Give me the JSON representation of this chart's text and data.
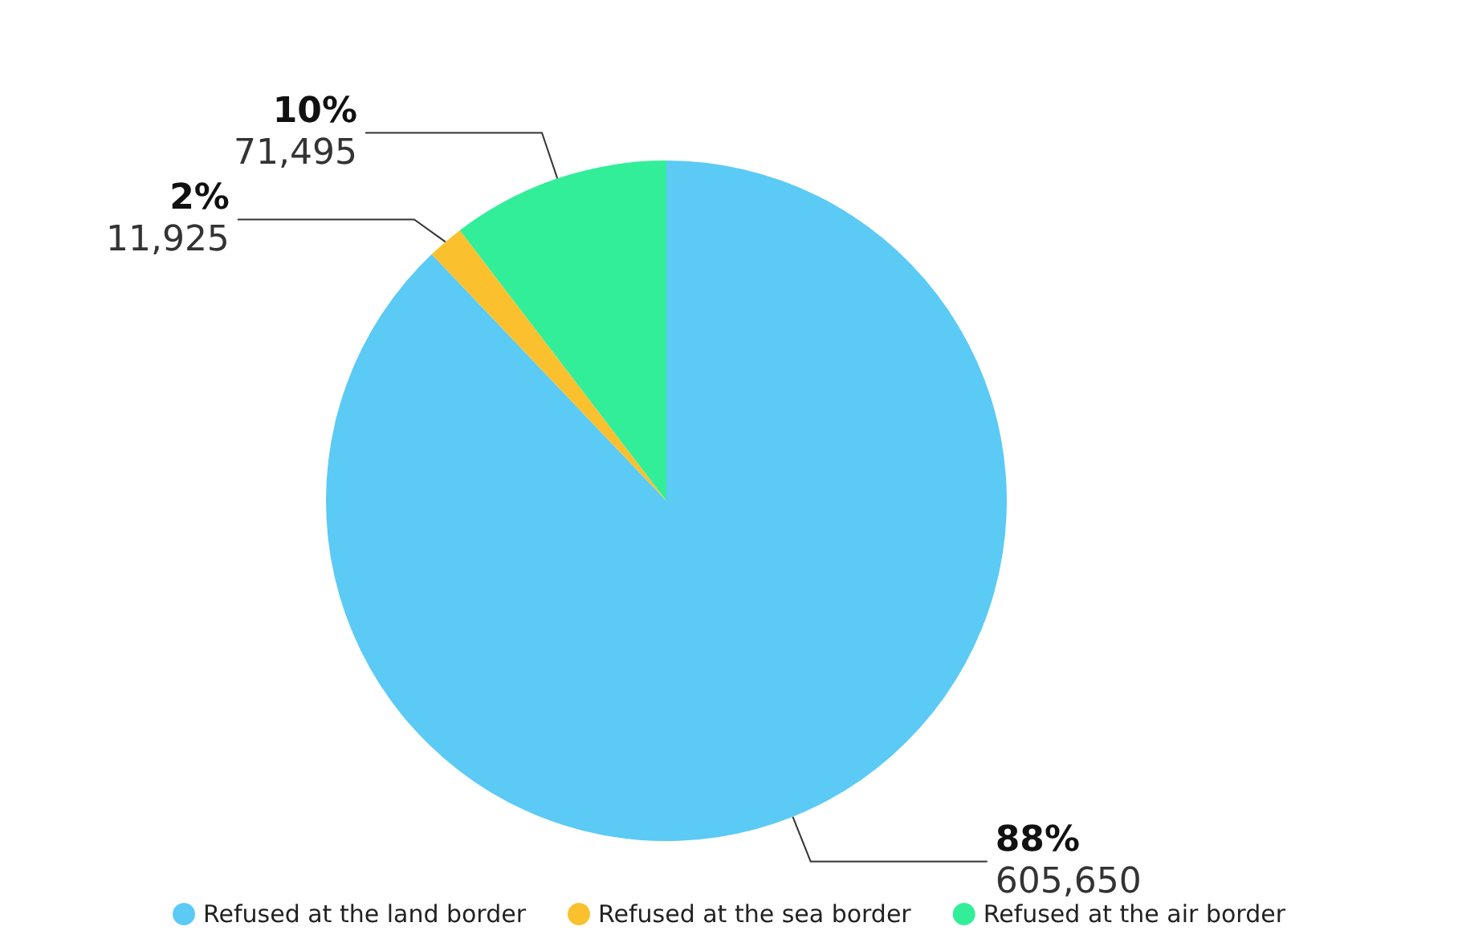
{
  "chart_data": {
    "type": "pie",
    "categories": [
      "Refused at the land border",
      "Refused at the sea border",
      "Refused at the air border"
    ],
    "values": [
      605650,
      11925,
      71495
    ],
    "colors": [
      "#5bcaf5",
      "#fbc02d",
      "#33ee99"
    ],
    "value_labels": [
      "88%\n605,650",
      "2%\n11,925",
      "10%\n71,495"
    ],
    "legend": "bottom"
  }
}
